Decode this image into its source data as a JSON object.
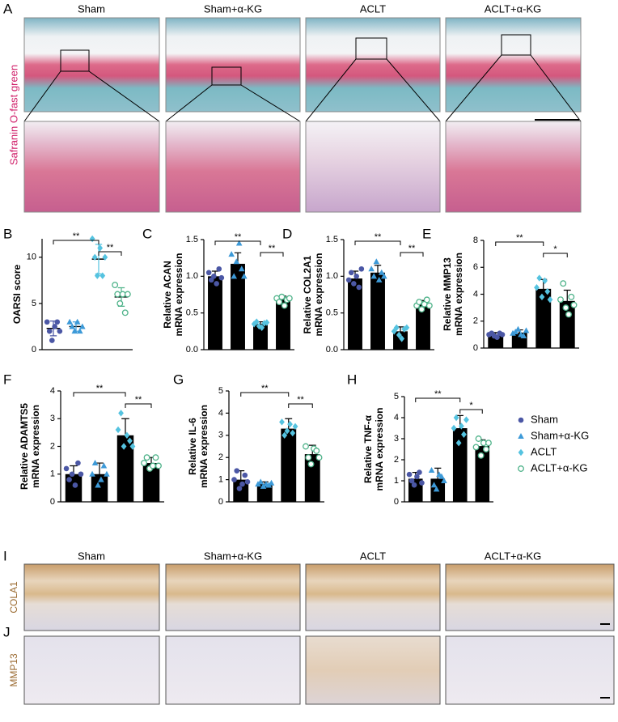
{
  "figure": {
    "groups": [
      "Sham",
      "Sham+α-KG",
      "ACLT",
      "ACLT+α-KG"
    ],
    "panel_a": {
      "letter": "A",
      "stain": "Safranin O-fast green"
    },
    "panel_i": {
      "letter": "I",
      "stain": "COLA1"
    },
    "panel_j": {
      "letter": "J",
      "stain": "MMP13"
    }
  },
  "legend": [
    {
      "name": "Sham",
      "color": "#4b57a5",
      "marker": "circle"
    },
    {
      "name": "Sham+α-KG",
      "color": "#3d9ad8",
      "marker": "triangle"
    },
    {
      "name": "ACLT",
      "color": "#55c3e0",
      "marker": "diamond"
    },
    {
      "name": "ACLT+α-KG",
      "color": "#4fb38a",
      "marker": "open-circle"
    }
  ],
  "chart_data": [
    {
      "type": "dot",
      "panel": "B",
      "ylabel": [
        "OARSI  score"
      ],
      "ylim": [
        0,
        12
      ],
      "yticks": [
        0,
        5,
        10
      ],
      "values": [
        2.3,
        2.5,
        9.8,
        5.7
      ],
      "errors": [
        0.8,
        0.5,
        1.6,
        1.0
      ],
      "points": [
        [
          3,
          2,
          1,
          2.5,
          3,
          2
        ],
        [
          3,
          2.5,
          2,
          3,
          2,
          2.5
        ],
        [
          12,
          10,
          8,
          11,
          8,
          10
        ],
        [
          7,
          6,
          5,
          6,
          4,
          6
        ]
      ],
      "annotations": [
        {
          "pair": [
            0,
            2
          ],
          "label": "**"
        },
        {
          "pair": [
            2,
            3
          ],
          "label": "**"
        }
      ]
    },
    {
      "type": "bar",
      "panel": "C",
      "ylabel": [
        "Relative ACAN",
        "mRNA  expression"
      ],
      "ylim": [
        0,
        1.5
      ],
      "yticks": [
        {
          "value": 0,
          "label": "0.0"
        },
        0.5,
        {
          "value": 1,
          "label": "1.0"
        },
        1.5
      ],
      "values": [
        1.0,
        1.17,
        0.35,
        0.68
      ],
      "errors": [
        0.07,
        0.15,
        0.03,
        0.05
      ],
      "points": [
        [
          1.05,
          0.95,
          1.0,
          0.9,
          1.1,
          0.98
        ],
        [
          1.3,
          1.0,
          1.2,
          1.45,
          1.1,
          1.0
        ],
        [
          0.35,
          0.38,
          0.32,
          0.3,
          0.36,
          0.37
        ],
        [
          0.7,
          0.65,
          0.72,
          0.6,
          0.68,
          0.7
        ]
      ],
      "annotations": [
        {
          "pair": [
            0,
            2
          ],
          "label": "**"
        },
        {
          "pair": [
            2,
            3
          ],
          "label": "**"
        }
      ]
    },
    {
      "type": "bar",
      "panel": "D",
      "ylabel": [
        "Relative COL2A1",
        "mRNA  expression"
      ],
      "ylim": [
        0,
        1.5
      ],
      "yticks": [
        {
          "value": 0,
          "label": "0.0"
        },
        0.5,
        {
          "value": 1,
          "label": "1.0"
        },
        1.5
      ],
      "values": [
        0.97,
        1.05,
        0.25,
        0.62
      ],
      "errors": [
        0.1,
        0.1,
        0.06,
        0.05
      ],
      "points": [
        [
          0.95,
          1.05,
          0.9,
          1.0,
          0.85,
          1.1
        ],
        [
          1.1,
          1.0,
          1.2,
          0.95,
          1.05,
          1.0
        ],
        [
          0.25,
          0.3,
          0.2,
          0.15,
          0.28,
          0.3
        ],
        [
          0.6,
          0.65,
          0.55,
          0.62,
          0.68,
          0.6
        ]
      ],
      "annotations": [
        {
          "pair": [
            0,
            2
          ],
          "label": "**"
        },
        {
          "pair": [
            2,
            3
          ],
          "label": "**"
        }
      ]
    },
    {
      "type": "bar",
      "panel": "E",
      "ylabel": [
        "Relative MMP13",
        "mRNA  expression"
      ],
      "ylim": [
        0,
        8
      ],
      "yticks": [
        0,
        2,
        4,
        6,
        8
      ],
      "values": [
        1.0,
        1.15,
        4.4,
        3.5
      ],
      "errors": [
        0.15,
        0.2,
        0.7,
        0.8
      ],
      "points": [
        [
          1.0,
          1.1,
          0.9,
          0.8,
          1.1,
          1.0
        ],
        [
          1.1,
          1.2,
          1.4,
          1.0,
          0.9,
          1.3
        ],
        [
          4.5,
          5.2,
          3.8,
          5.0,
          4.2,
          3.6
        ],
        [
          3.6,
          4.8,
          3.0,
          2.5,
          3.8,
          3.2
        ]
      ],
      "annotations": [
        {
          "pair": [
            0,
            2
          ],
          "label": "**"
        },
        {
          "pair": [
            2,
            3
          ],
          "label": "*"
        }
      ]
    },
    {
      "type": "bar",
      "panel": "F",
      "ylabel": [
        "Relative ADAMTS5",
        "mRNA  expression"
      ],
      "ylim": [
        0,
        4
      ],
      "yticks": [
        0,
        1,
        2,
        3,
        4
      ],
      "values": [
        1.0,
        1.0,
        2.4,
        1.4
      ],
      "errors": [
        0.3,
        0.4,
        0.6,
        0.2
      ],
      "points": [
        [
          1.2,
          0.8,
          1.0,
          0.6,
          1.4,
          1.0
        ],
        [
          1.0,
          1.4,
          0.6,
          0.8,
          1.3,
          1.0
        ],
        [
          2.6,
          3.2,
          2.0,
          2.4,
          2.2,
          2.0
        ],
        [
          1.4,
          1.6,
          1.2,
          1.3,
          1.6,
          1.3
        ]
      ],
      "annotations": [
        {
          "pair": [
            0,
            2
          ],
          "label": "**"
        },
        {
          "pair": [
            2,
            3
          ],
          "label": "**"
        }
      ]
    },
    {
      "type": "bar",
      "panel": "G",
      "ylabel": [
        "Relative IL-6",
        "mRNA  expression"
      ],
      "ylim": [
        0,
        5
      ],
      "yticks": [
        0,
        1,
        2,
        3,
        4,
        5
      ],
      "values": [
        1.0,
        0.8,
        3.3,
        2.15
      ],
      "errors": [
        0.4,
        0.1,
        0.45,
        0.4
      ],
      "points": [
        [
          1.0,
          1.4,
          0.6,
          0.8,
          1.2,
          0.9
        ],
        [
          0.8,
          0.9,
          0.7,
          0.8,
          0.75,
          0.85
        ],
        [
          3.6,
          3.0,
          3.2,
          3.5,
          3.1,
          3.4
        ],
        [
          2.5,
          2.0,
          1.7,
          2.4,
          2.3,
          2.0
        ]
      ],
      "annotations": [
        {
          "pair": [
            0,
            2
          ],
          "label": "**"
        },
        {
          "pair": [
            2,
            3
          ],
          "label": "**"
        }
      ]
    },
    {
      "type": "bar",
      "panel": "H",
      "ylabel": [
        "Relative TNF-α",
        "mRNA  expression"
      ],
      "ylim": [
        0,
        5
      ],
      "yticks": [
        0,
        1,
        2,
        3,
        4,
        5
      ],
      "values": [
        1.1,
        1.1,
        3.5,
        2.65
      ],
      "errors": [
        0.3,
        0.5,
        0.6,
        0.3
      ],
      "points": [
        [
          1.3,
          1.0,
          0.8,
          1.2,
          1.4,
          0.9
        ],
        [
          1.5,
          0.8,
          0.6,
          1.3,
          1.2,
          1.0
        ],
        [
          3.5,
          4.0,
          2.8,
          3.6,
          3.2,
          3.9
        ],
        [
          2.6,
          3.0,
          2.2,
          2.8,
          2.5,
          2.8
        ]
      ],
      "annotations": [
        {
          "pair": [
            0,
            2
          ],
          "label": "**"
        },
        {
          "pair": [
            2,
            3
          ],
          "label": "*"
        }
      ]
    }
  ]
}
